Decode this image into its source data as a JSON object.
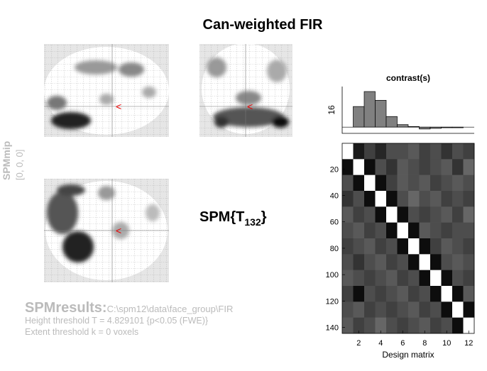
{
  "title": "Can-weighted FIR",
  "mip": {
    "label": "SPMmip",
    "coords": "[0, 0, 0]"
  },
  "stat": {
    "prefix": "SPM{T",
    "subscript": "132",
    "suffix": "}"
  },
  "results": {
    "label": "SPMresults:",
    "path": "C:\\spm12\\data\\face_group\\FIR",
    "height": "Height threshold T = 4.829101  {p<0.05 (FWE)}",
    "extent": "Extent threshold k = 0 voxels"
  },
  "chart_data": [
    {
      "type": "bar",
      "title": "contrast(s)",
      "y_label": "16",
      "values": [
        0,
        0.33,
        0.57,
        0.43,
        0.17,
        0.04,
        0.01,
        -0.03,
        -0.02,
        -0.01,
        -0.01,
        0
      ],
      "color": "#808080",
      "ylim": [
        -0.1,
        0.65
      ]
    },
    {
      "type": "heatmap",
      "x_label": "Design matrix",
      "xlim": [
        0.5,
        12.5
      ],
      "xticks": [
        2,
        4,
        6,
        8,
        10,
        12
      ],
      "ylim": [
        0.5,
        144.5
      ],
      "yticks": [
        20,
        40,
        60,
        80,
        100,
        120,
        140
      ],
      "matrix": [
        [
          1.0,
          0.1,
          0.25,
          0.15,
          0.3,
          0.3,
          0.35,
          0.25,
          0.3,
          0.2,
          0.3,
          0.25
        ],
        [
          0.05,
          1.0,
          0.05,
          0.3,
          0.2,
          0.35,
          0.3,
          0.25,
          0.3,
          0.35,
          0.2,
          0.4
        ],
        [
          0.3,
          0.05,
          1.0,
          0.05,
          0.25,
          0.35,
          0.3,
          0.35,
          0.25,
          0.3,
          0.35,
          0.3
        ],
        [
          0.2,
          0.3,
          0.05,
          1.0,
          0.05,
          0.3,
          0.4,
          0.3,
          0.35,
          0.25,
          0.3,
          0.25
        ],
        [
          0.35,
          0.25,
          0.3,
          0.05,
          1.0,
          0.05,
          0.3,
          0.25,
          0.3,
          0.35,
          0.25,
          0.4
        ],
        [
          0.3,
          0.35,
          0.25,
          0.3,
          0.05,
          1.0,
          0.05,
          0.35,
          0.3,
          0.25,
          0.3,
          0.3
        ],
        [
          0.25,
          0.3,
          0.35,
          0.25,
          0.3,
          0.05,
          1.0,
          0.05,
          0.25,
          0.35,
          0.3,
          0.25
        ],
        [
          0.3,
          0.2,
          0.3,
          0.35,
          0.25,
          0.3,
          0.05,
          1.0,
          0.05,
          0.3,
          0.35,
          0.3
        ],
        [
          0.35,
          0.3,
          0.25,
          0.3,
          0.35,
          0.25,
          0.3,
          0.05,
          1.0,
          0.05,
          0.3,
          0.25
        ],
        [
          0.25,
          0.05,
          0.3,
          0.25,
          0.3,
          0.35,
          0.25,
          0.3,
          0.05,
          1.0,
          0.05,
          0.35
        ],
        [
          0.3,
          0.35,
          0.25,
          0.3,
          0.25,
          0.3,
          0.35,
          0.25,
          0.3,
          0.05,
          1.0,
          0.05
        ],
        [
          0.35,
          0.25,
          0.3,
          0.4,
          0.3,
          0.25,
          0.3,
          0.35,
          0.25,
          0.3,
          0.05,
          1.0
        ]
      ]
    }
  ]
}
